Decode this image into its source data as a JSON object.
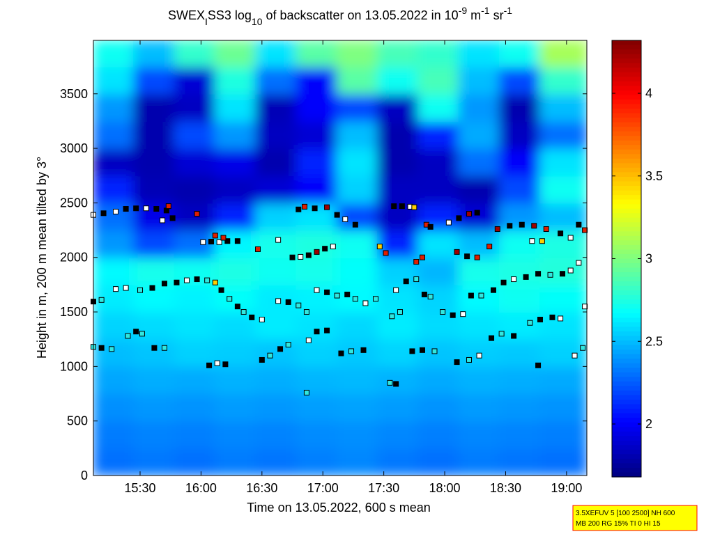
{
  "chart_data": {
    "type": "heatmap-scatter",
    "title_parts": [
      {
        "text": "SWEX"
      },
      {
        "text": "I",
        "script": "sub"
      },
      {
        "text": "SS3 log"
      },
      {
        "text": "10",
        "script": "sub"
      },
      {
        "text": " of backscatter on 13.05.2022 in 10"
      },
      {
        "text": "-9",
        "script": "sup"
      },
      {
        "text": " m"
      },
      {
        "text": "-1",
        "script": "sup"
      },
      {
        "text": " sr"
      },
      {
        "text": "-1",
        "script": "sup"
      }
    ],
    "x_label": "Time on 13.05.2022, 600 s mean",
    "y_label": "Height in m, 200 m mean tilted by 3°",
    "xlim": [
      907,
      1150
    ],
    "xticks": [
      {
        "value": 930,
        "label": "15:30"
      },
      {
        "value": 960,
        "label": "16:00"
      },
      {
        "value": 990,
        "label": "16:30"
      },
      {
        "value": 1020,
        "label": "17:00"
      },
      {
        "value": 1050,
        "label": "17:30"
      },
      {
        "value": 1080,
        "label": "18:00"
      },
      {
        "value": 1110,
        "label": "18:30"
      },
      {
        "value": 1140,
        "label": "19:00"
      }
    ],
    "ylim": [
      0,
      3990
    ],
    "yticks": [
      0,
      500,
      1000,
      1500,
      2000,
      2500,
      3000,
      3500
    ],
    "clim": [
      1.68,
      4.32
    ],
    "cticks": [
      2,
      2.5,
      3,
      3.5,
      4
    ],
    "colormap": "jet",
    "x_edges": [
      907,
      927,
      947,
      967,
      987,
      1007,
      1027,
      1047,
      1067,
      1087,
      1107,
      1127,
      1150
    ],
    "y_edges": [
      0,
      250,
      500,
      750,
      1000,
      1250,
      1500,
      1750,
      2000,
      2250,
      2500,
      2750,
      3000,
      3250,
      3500,
      3750,
      3990
    ],
    "z": [
      [
        2.3,
        2.32,
        2.3,
        2.33,
        2.31,
        2.34,
        2.36,
        2.32,
        2.3,
        2.33,
        2.31,
        2.3
      ],
      [
        2.33,
        2.35,
        2.34,
        2.36,
        2.35,
        2.37,
        2.38,
        2.36,
        2.34,
        2.36,
        2.35,
        2.34
      ],
      [
        2.38,
        2.4,
        2.39,
        2.41,
        2.4,
        2.42,
        2.43,
        2.41,
        2.39,
        2.41,
        2.4,
        2.39
      ],
      [
        2.44,
        2.46,
        2.45,
        2.47,
        2.46,
        2.48,
        2.49,
        2.47,
        2.45,
        2.47,
        2.46,
        2.45
      ],
      [
        2.5,
        2.52,
        2.55,
        2.54,
        2.52,
        2.55,
        2.53,
        2.56,
        2.52,
        2.54,
        2.53,
        2.55
      ],
      [
        2.56,
        2.58,
        2.6,
        2.58,
        2.62,
        2.6,
        2.57,
        2.62,
        2.58,
        2.6,
        2.62,
        2.6
      ],
      [
        2.62,
        2.66,
        2.64,
        2.68,
        2.62,
        2.64,
        2.66,
        2.6,
        2.56,
        2.66,
        2.7,
        2.68
      ],
      [
        2.66,
        2.72,
        2.7,
        2.74,
        2.7,
        2.72,
        2.68,
        2.55,
        2.48,
        2.72,
        2.74,
        2.76
      ],
      [
        2.4,
        2.2,
        2.3,
        2.65,
        2.72,
        2.75,
        2.7,
        2.1,
        2.6,
        2.5,
        2.7,
        2.74
      ],
      [
        2.3,
        1.95,
        1.85,
        2.1,
        2.55,
        2.6,
        2.2,
        1.85,
        2.1,
        1.9,
        2.4,
        2.5
      ],
      [
        2.1,
        1.82,
        1.8,
        1.85,
        1.9,
        2.0,
        2.55,
        1.85,
        1.85,
        1.8,
        2.2,
        2.7
      ],
      [
        1.85,
        1.8,
        1.9,
        1.95,
        1.8,
        2.1,
        2.6,
        1.8,
        1.85,
        2.3,
        2.0,
        2.6
      ],
      [
        2.3,
        1.8,
        2.2,
        2.4,
        1.85,
        1.9,
        2.5,
        1.8,
        2.1,
        2.45,
        1.85,
        2.3
      ],
      [
        2.4,
        1.8,
        1.85,
        2.6,
        1.82,
        2.0,
        2.2,
        1.85,
        2.7,
        2.4,
        1.8,
        2.5
      ],
      [
        2.6,
        2.2,
        1.9,
        2.75,
        2.3,
        2.0,
        2.9,
        2.7,
        2.85,
        2.5,
        2.2,
        2.8
      ],
      [
        2.7,
        2.5,
        2.8,
        2.95,
        2.6,
        2.9,
        3.0,
        2.85,
        2.8,
        2.6,
        2.7,
        3.1
      ]
    ],
    "scatter": {
      "x": [
        907,
        912,
        918,
        923,
        928,
        933,
        938,
        943,
        941,
        946,
        944,
        958,
        961,
        965,
        969,
        973,
        978,
        967,
        971,
        988,
        998,
        1005,
        1009,
        1013,
        1017,
        1021,
        1025,
        1008,
        1011,
        1016,
        1022,
        1027,
        1031,
        1036,
        1048,
        1051,
        1055,
        1059,
        1063,
        1065,
        1066,
        1069,
        1071,
        1073,
        1082,
        1087,
        1092,
        1096,
        1086,
        1091,
        1096,
        1102,
        1106,
        1112,
        1118,
        1124,
        1130,
        1123,
        1128,
        1137,
        1142,
        1146,
        1149,
        907,
        911,
        918,
        923,
        930,
        936,
        942,
        948,
        953,
        958,
        963,
        967,
        970,
        974,
        978,
        981,
        985,
        990,
        998,
        1003,
        1008,
        1012,
        1017,
        1022,
        1027,
        1032,
        1036,
        1041,
        1046,
        1056,
        1061,
        1066,
        1070,
        1073,
        1079,
        1084,
        1089,
        1093,
        1098,
        1104,
        1109,
        1114,
        1120,
        1126,
        1132,
        1138,
        1142,
        1146,
        1149,
        907,
        911,
        916,
        924,
        928,
        931,
        937,
        942,
        964,
        968,
        972,
        990,
        994,
        999,
        1003,
        1012,
        1013,
        1017,
        1022,
        1029,
        1034,
        1040,
        1053,
        1056,
        1054,
        1058,
        1064,
        1069,
        1075,
        1086,
        1092,
        1097,
        1103,
        1108,
        1114,
        1122,
        1127,
        1133,
        1137,
        1126,
        1144,
        1148
      ],
      "values": [
        2390,
        2405,
        2420,
        2445,
        2450,
        2450,
        2445,
        2430,
        2340,
        2360,
        2470,
        2400,
        2140,
        2145,
        2140,
        2150,
        2150,
        2200,
        2180,
        2075,
        2160,
        2000,
        2005,
        2020,
        2050,
        2080,
        2100,
        2440,
        2465,
        2450,
        2460,
        2390,
        2350,
        2300,
        2100,
        2040,
        2470,
        2470,
        2465,
        2460,
        1960,
        2000,
        2300,
        2280,
        2320,
        2360,
        2400,
        2410,
        2050,
        2010,
        2000,
        2100,
        2260,
        2290,
        2300,
        2290,
        2260,
        2150,
        2150,
        2220,
        2180,
        2300,
        2250,
        1595,
        1610,
        1710,
        1720,
        1700,
        1720,
        1760,
        1770,
        1790,
        1800,
        1790,
        1770,
        1700,
        1620,
        1550,
        1500,
        1450,
        1430,
        1600,
        1590,
        1560,
        1500,
        1700,
        1680,
        1650,
        1660,
        1620,
        1580,
        1620,
        1700,
        1780,
        1800,
        1660,
        1640,
        1500,
        1470,
        1480,
        1650,
        1650,
        1700,
        1770,
        1800,
        1820,
        1850,
        1840,
        1850,
        1880,
        1950,
        1550,
        1180,
        1170,
        1160,
        1280,
        1320,
        1300,
        1170,
        1170,
        1010,
        1030,
        1020,
        1060,
        1100,
        1160,
        1200,
        760,
        1240,
        1320,
        1330,
        1120,
        1140,
        1150,
        850,
        840,
        1460,
        1500,
        1140,
        1150,
        1140,
        1040,
        1060,
        1100,
        1260,
        1300,
        1280,
        1400,
        1430,
        1450,
        1440,
        1010,
        1100,
        1170
      ],
      "colors": [
        "#ffffff",
        "#000000",
        "#ffffff",
        "#000000",
        "#000000",
        "#ffffff",
        "#000000",
        "#000000",
        "#ffffff",
        "#000000",
        "#e01e00",
        "#e01e00",
        "#ffffff",
        "#000000",
        "#ffffff",
        "#000000",
        "#000000",
        "#e01e00",
        "#e01e00",
        "#e01e00",
        "#ffffff",
        "#000000",
        "#ffffff",
        "#000000",
        "#a00000",
        "#000000",
        "#ffffff",
        "#000000",
        "#e01e00",
        "#000000",
        "#a00000",
        "#000000",
        "#ffffff",
        "#000000",
        "#ffd000",
        "#e01e00",
        "#000000",
        "#000000",
        "#ffffff",
        "#ffd000",
        "#e01e00",
        "#e01e00",
        "#e01e00",
        "#000000",
        "#ffffff",
        "#000000",
        "#a00000",
        "#000000",
        "#a00000",
        "#000000",
        "#e01e00",
        "#e01e00",
        "#a00000",
        "#000000",
        "#000000",
        "#a00000",
        "#e01e00",
        "#ffffff",
        "#ffd000",
        "#000000",
        "#ffffff",
        "#000000",
        "#e01e00",
        "#000000",
        "#30e8e0",
        "#ffffff",
        "#ffffff",
        "#30e8e0",
        "#000000",
        "#000000",
        "#000000",
        "#ffffff",
        "#000000",
        "#30e8e0",
        "#ffd000",
        "#000000",
        "#30e8e0",
        "#000000",
        "#30e8e0",
        "#000000",
        "#ffffff",
        "#ffffff",
        "#000000",
        "#30e8e0",
        "#30e8e0",
        "#ffffff",
        "#000000",
        "#30e8e0",
        "#000000",
        "#30e8e0",
        "#ffffff",
        "#30e8e0",
        "#ffffff",
        "#000000",
        "#30e8e0",
        "#000000",
        "#30e8e0",
        "#30e8e0",
        "#000000",
        "#ffffff",
        "#000000",
        "#30e8e0",
        "#000000",
        "#000000",
        "#ffffff",
        "#000000",
        "#000000",
        "#30e8e0",
        "#000000",
        "#ffffff",
        "#ffffff",
        "#ffffff",
        "#30e8e0",
        "#000000",
        "#30e8e0",
        "#30e8e0",
        "#000000",
        "#30e8e0",
        "#000000",
        "#30e8e0",
        "#000000",
        "#ffffff",
        "#000000",
        "#000000",
        "#30e8e0",
        "#000000",
        "#30e8e0",
        "#30e8e0",
        "#ffffff",
        "#000000",
        "#000000",
        "#000000",
        "#30e8e0",
        "#000000",
        "#30e8e0",
        "#000000",
        "#30e8e0",
        "#30e8e0",
        "#000000",
        "#000000",
        "#30e8e0",
        "#000000",
        "#30e8e0",
        "#ffffff",
        "#000000",
        "#30e8e0",
        "#000000",
        "#30e8e0",
        "#000000",
        "#000000",
        "#ffffff",
        "#000000",
        "#ffffff",
        "#30e8e0"
      ]
    },
    "info_box": [
      "3.5XEFUV 5 [100 2500] NH 600",
      "MB 200 RG 15% TI 0 HI 15"
    ]
  }
}
